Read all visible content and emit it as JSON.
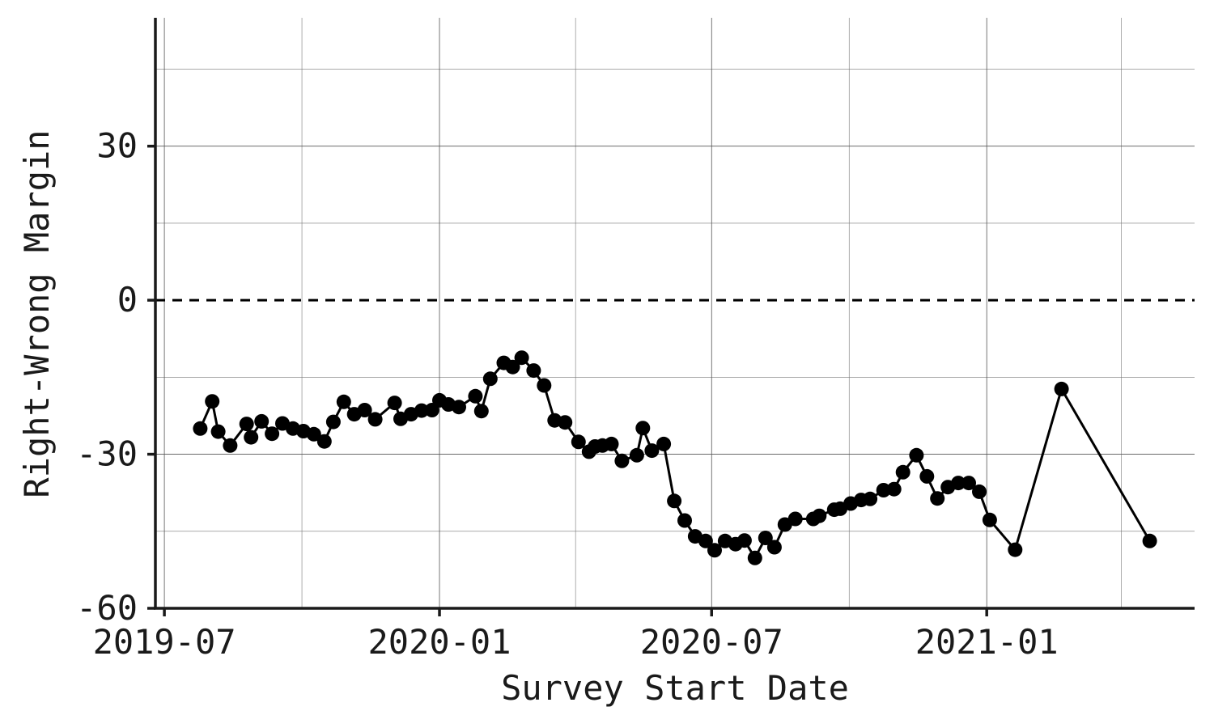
{
  "chart_data": {
    "type": "line",
    "title": "",
    "xlabel": "Survey Start Date",
    "ylabel": "Right-Wrong Margin",
    "x_ticks": [
      "2019-07",
      "2020-01",
      "2020-07",
      "2021-01"
    ],
    "y_ticks": [
      "-60",
      "-30",
      "0",
      "30"
    ],
    "y_tick_values": [
      -60,
      -30,
      0,
      30
    ],
    "xlim": [
      "2019-06-25",
      "2021-05-20"
    ],
    "ylim": [
      -60,
      55
    ],
    "grid": true,
    "reference_line": {
      "y": 0,
      "style": "dashed"
    },
    "series": [
      {
        "x": [
          "2019-07-25",
          "2019-08-02",
          "2019-08-06",
          "2019-08-14",
          "2019-08-25",
          "2019-08-28",
          "2019-09-04",
          "2019-09-11",
          "2019-09-18",
          "2019-09-25",
          "2019-10-02",
          "2019-10-09",
          "2019-10-16",
          "2019-10-22",
          "2019-10-29",
          "2019-11-05",
          "2019-11-12",
          "2019-11-19",
          "2019-12-02",
          "2019-12-06",
          "2019-12-13",
          "2019-12-20",
          "2019-12-27",
          "2020-01-01",
          "2020-01-07",
          "2020-01-14",
          "2020-01-25",
          "2020-01-29",
          "2020-02-04",
          "2020-02-13",
          "2020-02-19",
          "2020-02-25",
          "2020-03-04",
          "2020-03-11",
          "2020-03-18",
          "2020-03-25",
          "2020-04-03",
          "2020-04-10",
          "2020-04-14",
          "2020-04-19",
          "2020-04-25",
          "2020-05-02",
          "2020-05-12",
          "2020-05-16",
          "2020-05-22",
          "2020-05-30",
          "2020-06-06",
          "2020-06-13",
          "2020-06-20",
          "2020-06-27",
          "2020-07-03",
          "2020-07-10",
          "2020-07-17",
          "2020-07-23",
          "2020-07-30",
          "2020-08-06",
          "2020-08-12",
          "2020-08-19",
          "2020-08-26",
          "2020-09-07",
          "2020-09-11",
          "2020-09-21",
          "2020-09-25",
          "2020-10-02",
          "2020-10-09",
          "2020-10-15",
          "2020-10-24",
          "2020-10-31",
          "2020-11-06",
          "2020-11-15",
          "2020-11-22",
          "2020-11-29",
          "2020-12-06",
          "2020-12-13",
          "2020-12-20",
          "2020-12-27",
          "2021-01-03",
          "2021-01-20",
          "2021-02-20",
          "2021-04-20"
        ],
        "y": [
          -25.0,
          -19.7,
          -25.6,
          -28.3,
          -24.1,
          -26.7,
          -23.6,
          -26.0,
          -24.0,
          -25.0,
          -25.5,
          -26.1,
          -27.5,
          -23.7,
          -19.8,
          -22.2,
          -21.4,
          -23.2,
          -20.0,
          -23.1,
          -22.2,
          -21.5,
          -21.4,
          -19.5,
          -20.3,
          -20.8,
          -18.7,
          -21.6,
          -15.3,
          -12.2,
          -13.0,
          -11.2,
          -13.7,
          -16.6,
          -23.4,
          -23.8,
          -27.6,
          -29.5,
          -28.5,
          -28.3,
          -28.0,
          -31.3,
          -30.2,
          -24.9,
          -29.3,
          -28.0,
          -39.1,
          -42.9,
          -46.0,
          -46.9,
          -48.7,
          -46.9,
          -47.5,
          -46.8,
          -50.2,
          -46.3,
          -48.1,
          -43.7,
          -42.6,
          -42.6,
          -42.0,
          -40.8,
          -40.6,
          -39.6,
          -38.9,
          -38.7,
          -37.0,
          -36.8,
          -33.5,
          -30.2,
          -34.3,
          -38.6,
          -36.4,
          -35.6,
          -35.6,
          -37.3,
          -42.8,
          -48.6,
          -17.3,
          -46.9
        ]
      }
    ]
  }
}
